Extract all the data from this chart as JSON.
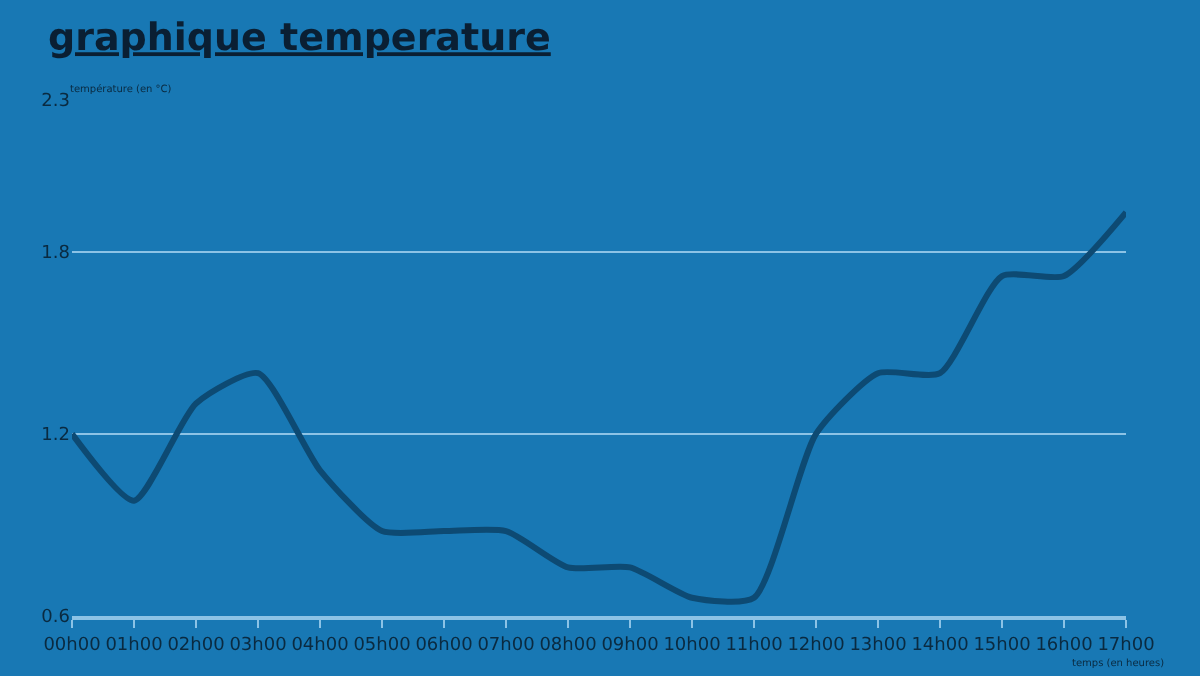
{
  "chart_data": {
    "type": "line",
    "title": "graphique temperature",
    "ylabel": "température (en °C)",
    "xlabel": "temps (en heures)",
    "categories": [
      "00h00",
      "01h00",
      "02h00",
      "03h00",
      "04h00",
      "05h00",
      "06h00",
      "07h00",
      "08h00",
      "09h00",
      "10h00",
      "11h00",
      "12h00",
      "13h00",
      "14h00",
      "15h00",
      "16h00",
      "17h00"
    ],
    "series": [
      {
        "color": "#0d4a73",
        "values": [
          1.2,
          0.98,
          1.3,
          1.4,
          1.08,
          0.88,
          0.88,
          0.88,
          0.76,
          0.76,
          0.66,
          0.66,
          1.2,
          1.4,
          1.4,
          1.72,
          1.72,
          1.93
        ]
      }
    ],
    "ylim": [
      0.6,
      2.3
    ],
    "yticks": [
      0.6,
      1.2,
      1.8,
      2.3
    ],
    "grid": "y",
    "marker": "none",
    "line_style": "solid"
  }
}
